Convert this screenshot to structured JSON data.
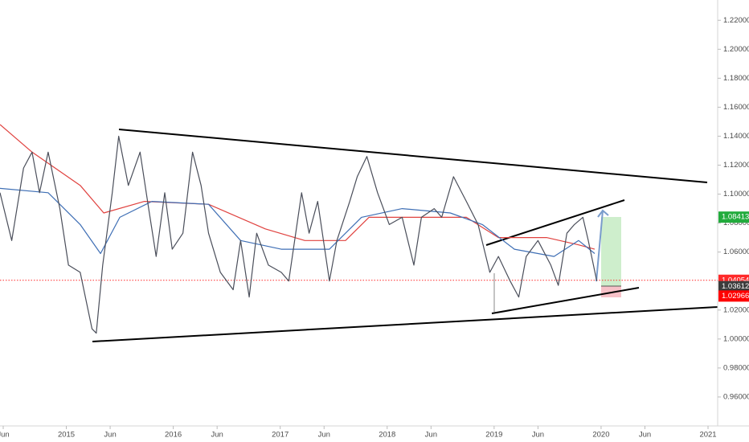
{
  "chart_data": {
    "type": "line",
    "xlim": [
      2014.38,
      2021.09
    ],
    "ylim": [
      0.94,
      1.234
    ],
    "grid": false,
    "xticks": [
      {
        "value": 2014.41,
        "label": "Jun"
      },
      2015,
      {
        "value": 2015.41,
        "label": "Jun"
      },
      2016,
      {
        "value": 2016.41,
        "label": "Jun"
      },
      2017,
      {
        "value": 2017.41,
        "label": "Jun"
      },
      2018,
      {
        "value": 2018.41,
        "label": "Jun"
      },
      2019,
      {
        "value": 2019.41,
        "label": "Jun"
      },
      2020,
      {
        "value": 2020.41,
        "label": "Jun"
      },
      2021
    ],
    "yticks": [
      {
        "value": 0.96,
        "label": "0.96000"
      },
      {
        "value": 0.98,
        "label": "0.98000"
      },
      {
        "value": 1.0,
        "label": "1.00000"
      },
      {
        "value": 1.02,
        "label": "1.02000"
      },
      {
        "value": 1.04,
        "label": "1.04000"
      },
      {
        "value": 1.06,
        "label": "1.06000"
      },
      {
        "value": 1.08,
        "label": "1.08000"
      },
      {
        "value": 1.1,
        "label": "1.10000"
      },
      {
        "value": 1.12,
        "label": "1.12000"
      },
      {
        "value": 1.14,
        "label": "1.14000"
      },
      {
        "value": 1.16,
        "label": "1.16000"
      },
      {
        "value": 1.18,
        "label": "1.18000"
      },
      {
        "value": 1.2,
        "label": "1.20000"
      },
      {
        "value": 1.22,
        "label": "1.22000"
      }
    ],
    "series": [
      {
        "color": "#4a4e5a",
        "x": [
          2014.38,
          2014.49,
          2014.6,
          2014.68,
          2014.75,
          2014.83,
          2014.94,
          2015.02,
          2015.13,
          2015.24,
          2015.28,
          2015.34,
          2015.43,
          2015.49,
          2015.58,
          2015.69,
          2015.77,
          2015.84,
          2015.92,
          2015.99,
          2016.09,
          2016.18,
          2016.26,
          2016.33,
          2016.44,
          2016.56,
          2016.63,
          2016.71,
          2016.78,
          2016.89,
          2017.01,
          2017.08,
          2017.2,
          2017.27,
          2017.35,
          2017.46,
          2017.53,
          2017.65,
          2017.72,
          2017.81,
          2017.91,
          2018.02,
          2018.14,
          2018.25,
          2018.32,
          2018.44,
          2018.51,
          2018.62,
          2018.74,
          2018.85,
          2018.96,
          2019.04,
          2019.15,
          2019.23,
          2019.3,
          2019.41,
          2019.53,
          2019.6,
          2019.68,
          2019.75,
          2019.83,
          2019.88,
          2019.96
        ],
        "values": [
          1.101,
          1.068,
          1.118,
          1.129,
          1.101,
          1.129,
          1.09,
          1.051,
          1.046,
          1.007,
          1.004,
          1.051,
          1.101,
          1.14,
          1.106,
          1.129,
          1.09,
          1.057,
          1.101,
          1.062,
          1.073,
          1.129,
          1.106,
          1.073,
          1.046,
          1.034,
          1.068,
          1.029,
          1.073,
          1.051,
          1.046,
          1.04,
          1.101,
          1.073,
          1.095,
          1.04,
          1.068,
          1.095,
          1.112,
          1.126,
          1.101,
          1.079,
          1.084,
          1.051,
          1.084,
          1.09,
          1.084,
          1.112,
          1.095,
          1.079,
          1.046,
          1.057,
          1.04,
          1.029,
          1.057,
          1.068,
          1.051,
          1.037,
          1.073,
          1.079,
          1.084,
          1.068,
          1.04
        ]
      },
      {
        "color": "#e0423f",
        "x": [
          2014.38,
          2014.68,
          2015.13,
          2015.35,
          2015.73,
          2016.33,
          2016.86,
          2017.23,
          2017.61,
          2017.83,
          2018.29,
          2018.74,
          2019.04,
          2019.49,
          2019.79,
          2019.94
        ],
        "values": [
          1.148,
          1.129,
          1.106,
          1.087,
          1.095,
          1.093,
          1.076,
          1.068,
          1.068,
          1.084,
          1.084,
          1.084,
          1.07,
          1.07,
          1.065,
          1.062
        ]
      },
      {
        "color": "#3f6fb5",
        "x": [
          2014.38,
          2014.83,
          2015.13,
          2015.32,
          2015.5,
          2015.8,
          2016.33,
          2016.63,
          2017.01,
          2017.46,
          2017.76,
          2018.14,
          2018.59,
          2018.89,
          2019.19,
          2019.56,
          2019.79,
          2019.94
        ],
        "values": [
          1.104,
          1.101,
          1.079,
          1.059,
          1.084,
          1.095,
          1.093,
          1.068,
          1.062,
          1.062,
          1.084,
          1.09,
          1.087,
          1.079,
          1.062,
          1.057,
          1.068,
          1.059
        ]
      }
    ],
    "price_labels": [
      {
        "value": 1.08413,
        "label": "1.08413",
        "color": "#22ab3d"
      },
      {
        "value": 1.04054,
        "label": "1.04054",
        "color": "#ff2a2a"
      },
      {
        "value": 1.03612,
        "label": "1.03612",
        "color": "#3c3c3c"
      },
      {
        "value": 1.02966,
        "label": "1.02966",
        "color": "#ff0000"
      }
    ]
  }
}
